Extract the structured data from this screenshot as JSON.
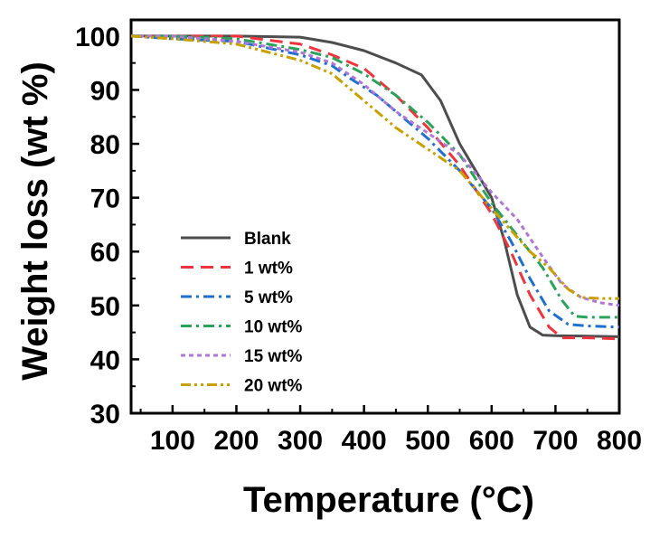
{
  "chart_data": {
    "type": "line",
    "title": "",
    "xlabel": "Temperature (°C)",
    "ylabel": "Weight loss (wt %)",
    "xlim": [
      35,
      800
    ],
    "ylim": [
      30,
      103
    ],
    "xticks": [
      100,
      200,
      300,
      400,
      500,
      600,
      700,
      800
    ],
    "yticks": [
      30,
      40,
      50,
      60,
      70,
      80,
      90,
      100
    ],
    "grid": false,
    "legend_position": "lower-left",
    "series": [
      {
        "name": "Blank",
        "color": "#4d4d4d",
        "dash": "solid",
        "points": [
          [
            35,
            100
          ],
          [
            100,
            100
          ],
          [
            200,
            100
          ],
          [
            300,
            99.8
          ],
          [
            350,
            98.8
          ],
          [
            400,
            97.3
          ],
          [
            450,
            95.0
          ],
          [
            490,
            92.8
          ],
          [
            520,
            88
          ],
          [
            550,
            80
          ],
          [
            580,
            74
          ],
          [
            600,
            70
          ],
          [
            620,
            62
          ],
          [
            640,
            52
          ],
          [
            660,
            46
          ],
          [
            680,
            44.5
          ],
          [
            700,
            44.4
          ],
          [
            750,
            44.3
          ],
          [
            800,
            44.2
          ]
        ]
      },
      {
        "name": "1 wt%",
        "color": "#f0343d",
        "dash": "dash",
        "points": [
          [
            35,
            100
          ],
          [
            100,
            100
          ],
          [
            200,
            100
          ],
          [
            300,
            98.5
          ],
          [
            350,
            96.5
          ],
          [
            400,
            94.0
          ],
          [
            450,
            89.0
          ],
          [
            500,
            83.0
          ],
          [
            550,
            76.0
          ],
          [
            600,
            67.0
          ],
          [
            630,
            60
          ],
          [
            660,
            52
          ],
          [
            690,
            46
          ],
          [
            710,
            44
          ],
          [
            750,
            44
          ],
          [
            800,
            43.8
          ]
        ]
      },
      {
        "name": "5 wt%",
        "color": "#1f6fd1",
        "dash": "dashdot",
        "points": [
          [
            35,
            100
          ],
          [
            100,
            99.5
          ],
          [
            200,
            99.0
          ],
          [
            300,
            96.5
          ],
          [
            350,
            94.5
          ],
          [
            380,
            92
          ],
          [
            420,
            89.0
          ],
          [
            460,
            85
          ],
          [
            500,
            81.0
          ],
          [
            550,
            75.0
          ],
          [
            600,
            68.0
          ],
          [
            630,
            62
          ],
          [
            660,
            55
          ],
          [
            690,
            49
          ],
          [
            720,
            46.5
          ],
          [
            750,
            46.2
          ],
          [
            800,
            46
          ]
        ]
      },
      {
        "name": "10 wt%",
        "color": "#2aa35a",
        "dash": "dashdot",
        "points": [
          [
            35,
            100
          ],
          [
            100,
            100
          ],
          [
            200,
            99.5
          ],
          [
            300,
            97.5
          ],
          [
            350,
            96
          ],
          [
            400,
            93.0
          ],
          [
            450,
            89.0
          ],
          [
            500,
            84.0
          ],
          [
            550,
            78.0
          ],
          [
            600,
            69.0
          ],
          [
            640,
            63
          ],
          [
            680,
            57
          ],
          [
            710,
            51
          ],
          [
            730,
            48
          ],
          [
            750,
            47.8
          ],
          [
            800,
            47.8
          ]
        ]
      },
      {
        "name": "15 wt%",
        "color": "#b077d8",
        "dash": "dot",
        "points": [
          [
            35,
            100
          ],
          [
            100,
            100
          ],
          [
            200,
            99
          ],
          [
            300,
            97
          ],
          [
            350,
            95
          ],
          [
            400,
            91
          ],
          [
            450,
            86
          ],
          [
            500,
            82
          ],
          [
            550,
            78
          ],
          [
            600,
            71
          ],
          [
            640,
            66
          ],
          [
            680,
            59
          ],
          [
            710,
            54
          ],
          [
            740,
            51.5
          ],
          [
            770,
            50.5
          ],
          [
            800,
            50
          ]
        ]
      },
      {
        "name": "20 wt%",
        "color": "#c9a000",
        "dash": "dashdotdot",
        "points": [
          [
            35,
            100
          ],
          [
            100,
            99.5
          ],
          [
            200,
            98.5
          ],
          [
            300,
            95.5
          ],
          [
            350,
            93
          ],
          [
            400,
            88
          ],
          [
            450,
            83
          ],
          [
            500,
            79
          ],
          [
            550,
            75
          ],
          [
            600,
            68
          ],
          [
            630,
            64
          ],
          [
            660,
            60
          ],
          [
            690,
            57
          ],
          [
            720,
            53
          ],
          [
            740,
            51.5
          ],
          [
            770,
            51.3
          ],
          [
            800,
            51.3
          ]
        ]
      }
    ]
  }
}
